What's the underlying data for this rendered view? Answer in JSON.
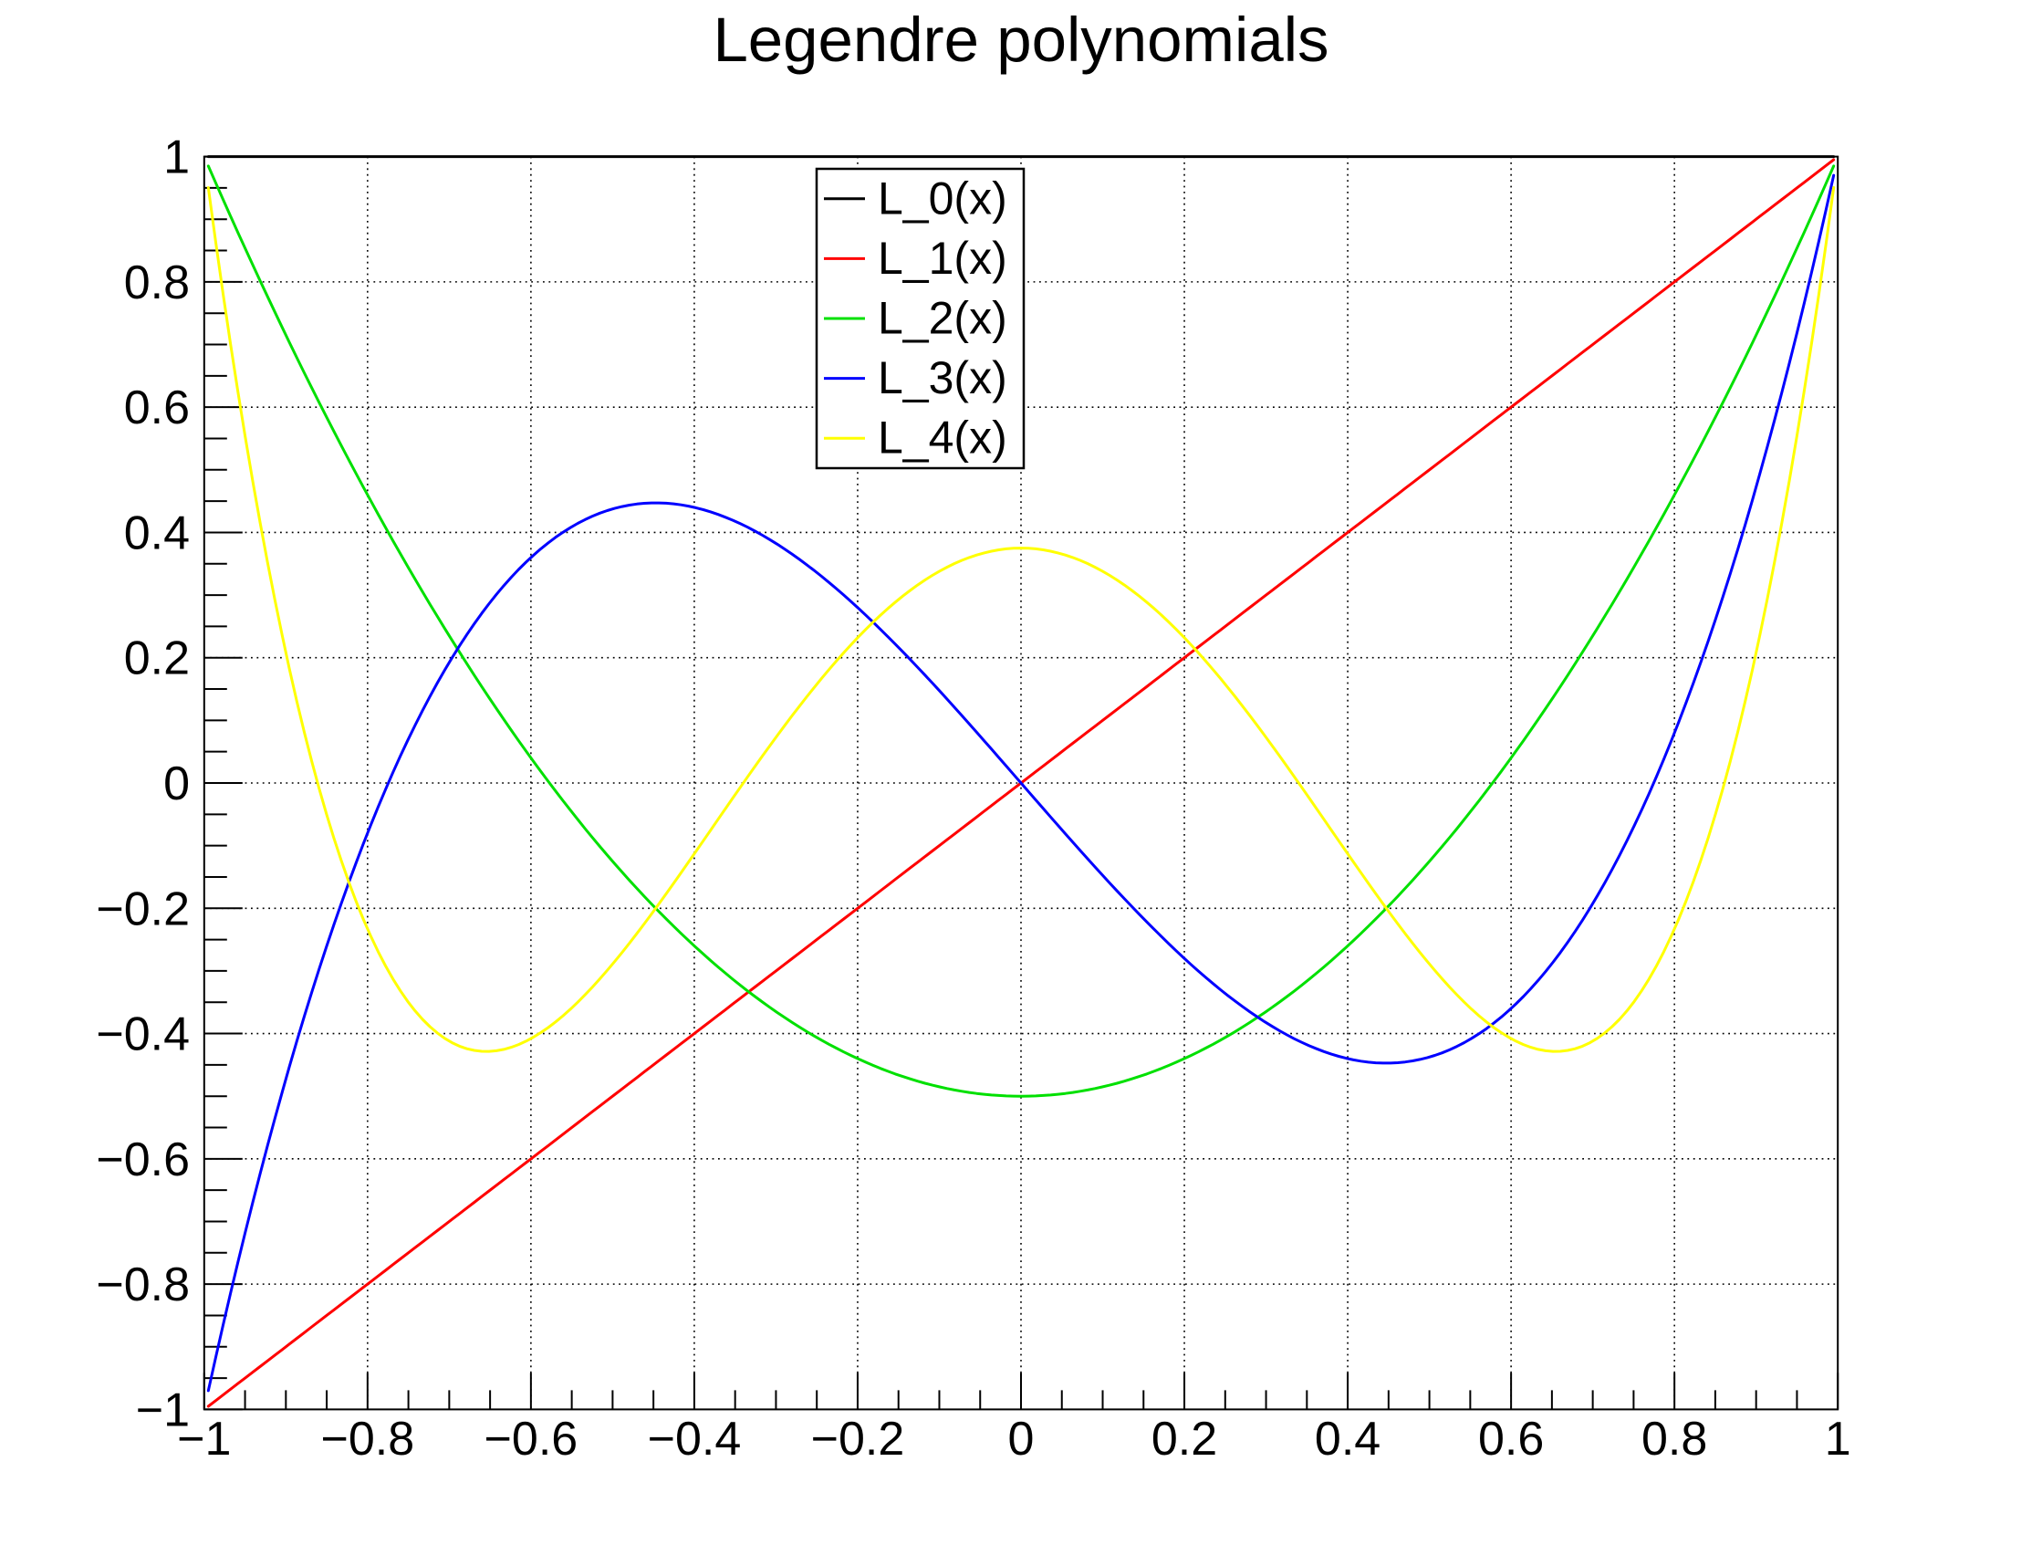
{
  "title": "Legendre polynomials",
  "chart_data": {
    "type": "line",
    "title": "Legendre polynomials",
    "xlabel": "",
    "ylabel": "",
    "xlim": [
      -1,
      1
    ],
    "ylim": [
      -1,
      1
    ],
    "x_major_step": 0.2,
    "x_minor_step": 0.05,
    "y_major_step": 0.2,
    "y_minor_step": 0.05,
    "grid": "dotted black gridlines at major ticks, both axes",
    "x_ticks": [
      -1,
      -0.8,
      -0.6,
      -0.4,
      -0.2,
      0,
      0.2,
      0.4,
      0.6,
      0.8,
      1
    ],
    "x_tick_labels": [
      "−1",
      "−0.8",
      "−0.6",
      "−0.4",
      "−0.2",
      "0",
      "0.2",
      "0.4",
      "0.6",
      "0.8",
      "1"
    ],
    "y_ticks": [
      1,
      0.8,
      0.6,
      0.4,
      0.2,
      0,
      -0.2,
      -0.4,
      -0.6,
      -0.8,
      -1
    ],
    "y_tick_labels": [
      "1",
      "0.8",
      "0.6",
      "0.4",
      "0.2",
      "0",
      "−0.2",
      "−0.4",
      "−0.6",
      "−0.8",
      "−1"
    ],
    "legend": {
      "position": "upper area, left of center, inside plot",
      "border_color": "#000000",
      "background": "#ffffff"
    },
    "x_samples": [
      -1,
      -0.95,
      -0.9,
      -0.85,
      -0.8,
      -0.75,
      -0.7,
      -0.65,
      -0.6,
      -0.55,
      -0.5,
      -0.45,
      -0.4,
      -0.35,
      -0.3,
      -0.25,
      -0.2,
      -0.15,
      -0.1,
      -0.05,
      0,
      0.05,
      0.1,
      0.15,
      0.2,
      0.25,
      0.3,
      0.35,
      0.4,
      0.45,
      0.5,
      0.55,
      0.6,
      0.65,
      0.7,
      0.75,
      0.8,
      0.85,
      0.9,
      0.95,
      1
    ],
    "series": [
      {
        "name": "L_0(x)",
        "color": "#000000",
        "coefficients": [
          1
        ],
        "values": [
          1,
          1,
          1,
          1,
          1,
          1,
          1,
          1,
          1,
          1,
          1,
          1,
          1,
          1,
          1,
          1,
          1,
          1,
          1,
          1,
          1,
          1,
          1,
          1,
          1,
          1,
          1,
          1,
          1,
          1,
          1,
          1,
          1,
          1,
          1,
          1,
          1,
          1,
          1,
          1,
          1
        ]
      },
      {
        "name": "L_1(x)",
        "color": "#ff0000",
        "coefficients": [
          0,
          1
        ],
        "values": [
          -1,
          -0.95,
          -0.9,
          -0.85,
          -0.8,
          -0.75,
          -0.7,
          -0.65,
          -0.6,
          -0.55,
          -0.5,
          -0.45,
          -0.4,
          -0.35,
          -0.3,
          -0.25,
          -0.2,
          -0.15,
          -0.1,
          -0.05,
          0,
          0.05,
          0.1,
          0.15,
          0.2,
          0.25,
          0.3,
          0.35,
          0.4,
          0.45,
          0.5,
          0.55,
          0.6,
          0.65,
          0.7,
          0.75,
          0.8,
          0.85,
          0.9,
          0.95,
          1
        ]
      },
      {
        "name": "L_2(x)",
        "color": "#00e000",
        "coefficients": [
          -0.5,
          0,
          1.5
        ],
        "values": [
          1,
          0.8538,
          0.715,
          0.5838,
          0.46,
          0.3438,
          0.235,
          0.1338,
          0.04,
          -0.0463,
          -0.125,
          -0.1963,
          -0.26,
          -0.3163,
          -0.365,
          -0.4063,
          -0.44,
          -0.4663,
          -0.485,
          -0.4963,
          -0.5,
          -0.4963,
          -0.485,
          -0.4663,
          -0.44,
          -0.4063,
          -0.365,
          -0.3163,
          -0.26,
          -0.1963,
          -0.125,
          -0.0463,
          0.04,
          0.1338,
          0.235,
          0.3438,
          0.46,
          0.5838,
          0.715,
          0.8538,
          1
        ]
      },
      {
        "name": "L_3(x)",
        "color": "#0000ff",
        "coefficients": [
          0,
          -1.5,
          0,
          2.5
        ],
        "values": [
          -1,
          -0.7184,
          -0.4725,
          -0.2603,
          -0.08,
          0.0703,
          0.1925,
          0.2884,
          0.36,
          0.4091,
          0.4375,
          0.4472,
          0.44,
          0.4178,
          0.3825,
          0.3359,
          0.28,
          0.2166,
          0.1475,
          0.0747,
          0,
          -0.0747,
          -0.1475,
          -0.2166,
          -0.28,
          -0.3359,
          -0.3825,
          -0.4178,
          -0.44,
          -0.4472,
          -0.4375,
          -0.4091,
          -0.36,
          -0.2884,
          -0.1925,
          -0.0703,
          0.08,
          0.2603,
          0.4725,
          0.7184,
          1
        ]
      },
      {
        "name": "L_4(x)",
        "color": "#ffff00",
        "coefficients": [
          0.375,
          0,
          -3.75,
          0,
          4.375
        ],
        "values": [
          1,
          0.5541,
          0.2079,
          -0.0506,
          -0.233,
          -0.3501,
          -0.4121,
          -0.4284,
          -0.408,
          -0.359,
          -0.2891,
          -0.205,
          -0.113,
          -0.0187,
          0.0729,
          0.1577,
          0.232,
          0.2928,
          0.3379,
          0.3657,
          0.375,
          0.3657,
          0.3379,
          0.2928,
          0.232,
          0.1577,
          0.0729,
          -0.0187,
          -0.113,
          -0.205,
          -0.2891,
          -0.359,
          -0.408,
          -0.4284,
          -0.4121,
          -0.3501,
          -0.233,
          -0.0506,
          0.2079,
          0.5541,
          1
        ]
      }
    ]
  }
}
